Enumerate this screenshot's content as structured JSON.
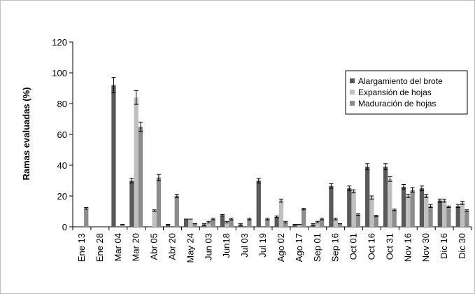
{
  "chart_data": {
    "type": "bar",
    "title": "",
    "xlabel": "",
    "ylabel": "Ramas evaluadas (%)",
    "ylim": [
      0,
      120
    ],
    "yticks": [
      0,
      20,
      40,
      60,
      80,
      100,
      120
    ],
    "grid": false,
    "legend_position": "right",
    "error_bars": true,
    "categories": [
      "Ene 13",
      "Ene 28",
      "Mar 04",
      "Mar 20",
      "Abr 05",
      "Abr 20",
      "May 24",
      "Jun 03",
      "Jun18",
      "Jul 03",
      "Jul 19",
      "Ago 02",
      "Ago 17",
      "Sep 01",
      "Sep 16",
      "Oct 01",
      "Oct 16",
      "Oct 31",
      "Nov 16",
      "Nov 30",
      "Dic 16",
      "Dic 30"
    ],
    "series": [
      {
        "name": "Alargamiento del brote",
        "color": "#595959",
        "values": [
          0,
          0,
          92,
          30,
          0,
          1.5,
          5,
          1.5,
          7.5,
          1.5,
          30,
          6.5,
          1.5,
          1.5,
          26.5,
          25,
          39,
          39,
          26,
          25,
          17,
          13.5
        ],
        "errors": [
          0,
          0,
          5,
          1.5,
          0,
          0,
          0,
          0.5,
          0.5,
          0.5,
          1.5,
          0.5,
          0,
          0.5,
          1.5,
          1.5,
          2,
          2,
          1.5,
          1.5,
          1,
          1
        ]
      },
      {
        "name": "Expansión de hojas",
        "color": "#bfbfbf",
        "values": [
          0,
          0,
          0,
          84,
          10.5,
          0,
          5,
          3,
          3,
          0,
          0,
          17,
          1.5,
          3,
          5,
          23,
          19,
          31,
          20,
          20,
          17,
          15.5
        ],
        "errors": [
          0,
          0,
          0,
          4.5,
          0.5,
          0,
          0,
          0.5,
          0.5,
          0,
          0,
          1,
          0,
          0.5,
          0.5,
          1,
          1,
          1.5,
          1,
          1,
          1,
          1
        ]
      },
      {
        "name": "Maduración de hojas",
        "color": "#8c8c8c",
        "values": [
          12,
          0,
          1.5,
          65,
          32,
          20,
          2,
          5,
          5,
          5,
          5,
          3,
          11.5,
          5,
          2,
          8,
          7,
          11,
          24,
          13.5,
          13,
          10.5
        ],
        "errors": [
          0.5,
          0,
          0,
          3,
          2,
          1,
          0,
          0.5,
          0.5,
          0.5,
          0.5,
          0.5,
          0.5,
          0.5,
          0,
          0.5,
          0.5,
          0.5,
          1.5,
          1,
          0.5,
          0.5
        ]
      }
    ]
  }
}
